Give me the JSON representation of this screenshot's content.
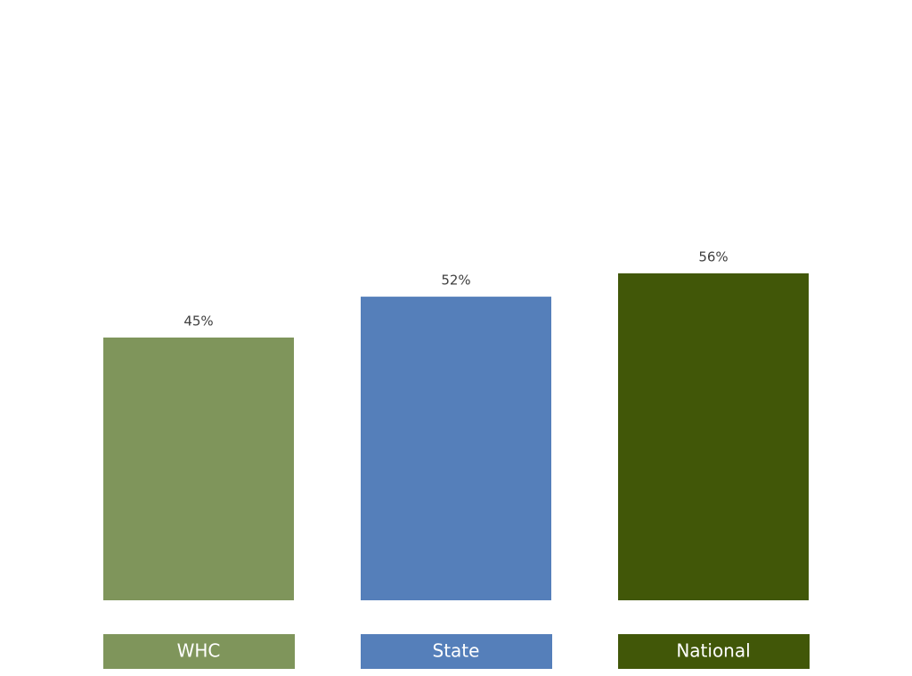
{
  "chart_data": {
    "type": "bar",
    "categories": [
      "WHC",
      "State",
      "National"
    ],
    "values": [
      45,
      52,
      56
    ],
    "value_labels": [
      "45%",
      "52%",
      "56%"
    ],
    "colors": [
      "#7f955b",
      "#557fba",
      "#415708"
    ],
    "ylim": [
      0,
      100
    ]
  }
}
